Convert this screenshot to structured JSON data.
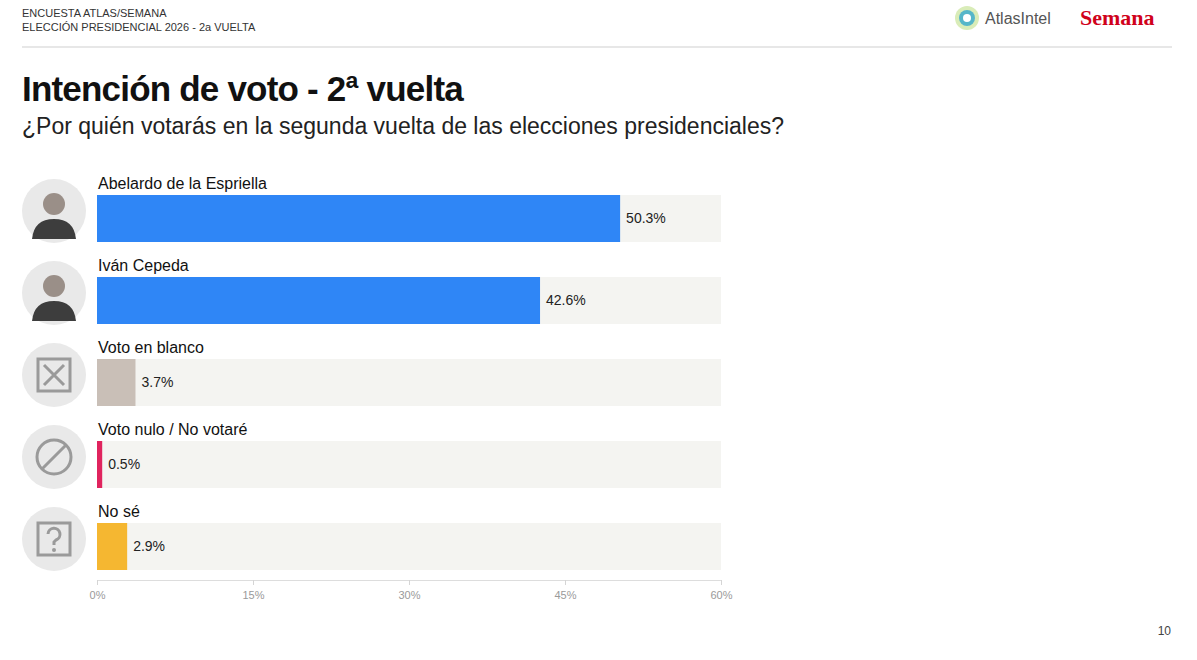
{
  "header": {
    "lines": [
      "ENCUESTA ATLAS/SEMANA",
      "ELECCIÓN PRESIDENCIAL 2026 - 2a VUELTA"
    ],
    "brands": [
      "AtlasIntel",
      "Semana"
    ],
    "page_number": "10"
  },
  "chart_data": {
    "type": "bar",
    "orientation": "horizontal",
    "title": "Intención de voto - 2ª vuelta",
    "subtitle": "¿Por quién votarás en la segunda vuelta de las elecciones presidenciales?",
    "categories": [
      "Abelardo de la Espriella",
      "Iván Cepeda",
      "Voto en blanco",
      "Voto nulo / No votaré",
      "No sé"
    ],
    "values": [
      50.3,
      42.6,
      3.7,
      0.5,
      2.9
    ],
    "value_labels": [
      "50.3%",
      "42.6%",
      "3.7%",
      "0.5%",
      "2.9%"
    ],
    "colors": [
      "#2f86f6",
      "#2f86f6",
      "#c9bfb7",
      "#e0245e",
      "#f5b731"
    ],
    "xlim": [
      0,
      60
    ],
    "xticks": [
      {
        "value": 0,
        "label": "0%"
      },
      {
        "value": 15,
        "label": "15%"
      },
      {
        "value": 30,
        "label": "30%"
      },
      {
        "value": 45,
        "label": "45%"
      },
      {
        "value": 60,
        "label": "60%"
      }
    ],
    "grid": false,
    "data_labels": true
  }
}
